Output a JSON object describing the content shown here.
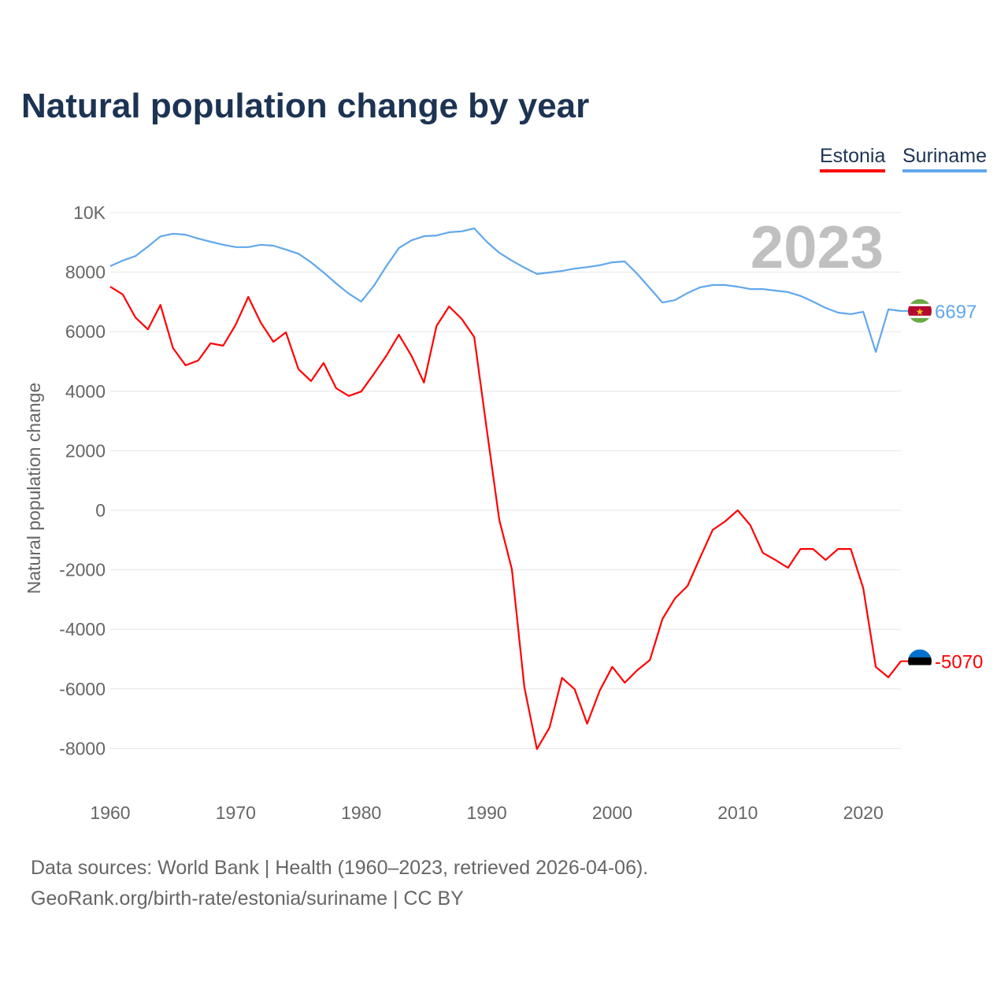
{
  "title": "Natural population change by year",
  "source_line1": "Data sources: World Bank | Health (1960–2023, retrieved 2026-04-06).",
  "source_line2": "GeoRank.org/birth-rate/estonia/suriname | CC BY",
  "chart_data": {
    "type": "line",
    "title": "Natural population change by year",
    "xlabel": "",
    "ylabel": "Natural population change",
    "xlim": [
      1960,
      2023
    ],
    "ylim": [
      -9000,
      10000
    ],
    "year_watermark": "2023",
    "x_ticks": [
      1960,
      1970,
      1980,
      1990,
      2000,
      2010,
      2020
    ],
    "x_tick_labels": [
      "1960",
      "1970",
      "1980",
      "1990",
      "2000",
      "2010",
      "2020"
    ],
    "y_ticks": [
      10000,
      8000,
      6000,
      4000,
      2000,
      0,
      -2000,
      -4000,
      -6000,
      -8000
    ],
    "y_tick_labels": [
      "10K",
      "8000",
      "6000",
      "4000",
      "2000",
      "0",
      "-2000",
      "-4000",
      "-6000",
      "-8000"
    ],
    "grid": true,
    "legend_position": "top-right",
    "x": [
      1960,
      1961,
      1962,
      1963,
      1964,
      1965,
      1966,
      1967,
      1968,
      1969,
      1970,
      1971,
      1972,
      1973,
      1974,
      1975,
      1976,
      1977,
      1978,
      1979,
      1980,
      1981,
      1982,
      1983,
      1984,
      1985,
      1986,
      1987,
      1988,
      1989,
      1990,
      1991,
      1992,
      1993,
      1994,
      1995,
      1996,
      1997,
      1998,
      1999,
      2000,
      2001,
      2002,
      2003,
      2004,
      2005,
      2006,
      2007,
      2008,
      2009,
      2010,
      2011,
      2012,
      2013,
      2014,
      2015,
      2016,
      2017,
      2018,
      2019,
      2020,
      2021,
      2022,
      2023
    ],
    "series": [
      {
        "name": "Estonia",
        "color": "#ff0000",
        "end_label": "-5070",
        "values": [
          7510,
          7250,
          6480,
          6080,
          6900,
          5450,
          4870,
          5030,
          5610,
          5530,
          6240,
          7170,
          6300,
          5660,
          5980,
          4740,
          4340,
          4950,
          4100,
          3840,
          3990,
          4580,
          5190,
          5900,
          5190,
          4290,
          6190,
          6850,
          6430,
          5820,
          2720,
          -320,
          -1980,
          -5950,
          -8020,
          -7300,
          -5630,
          -6010,
          -7170,
          -6060,
          -5260,
          -5790,
          -5370,
          -5030,
          -3650,
          -2960,
          -2540,
          -1590,
          -660,
          -370,
          0,
          -500,
          -1430,
          -1670,
          -1930,
          -1300,
          -1300,
          -1670,
          -1300,
          -1300,
          -2620,
          -5260,
          -5610,
          -5070
        ]
      },
      {
        "name": "Suriname",
        "color": "#61a8ec",
        "end_label": "6697",
        "values": [
          8200,
          8390,
          8540,
          8860,
          9200,
          9290,
          9260,
          9130,
          9020,
          8920,
          8840,
          8840,
          8920,
          8890,
          8760,
          8620,
          8330,
          7990,
          7620,
          7280,
          7010,
          7540,
          8200,
          8810,
          9070,
          9210,
          9230,
          9340,
          9370,
          9470,
          9020,
          8650,
          8390,
          8150,
          7940,
          7990,
          8040,
          8120,
          8170,
          8230,
          8330,
          8360,
          7940,
          7460,
          6980,
          7060,
          7300,
          7490,
          7570,
          7570,
          7510,
          7430,
          7430,
          7380,
          7330,
          7200,
          7010,
          6800,
          6640,
          6590,
          6670,
          5320,
          6750,
          6697
        ]
      }
    ]
  }
}
